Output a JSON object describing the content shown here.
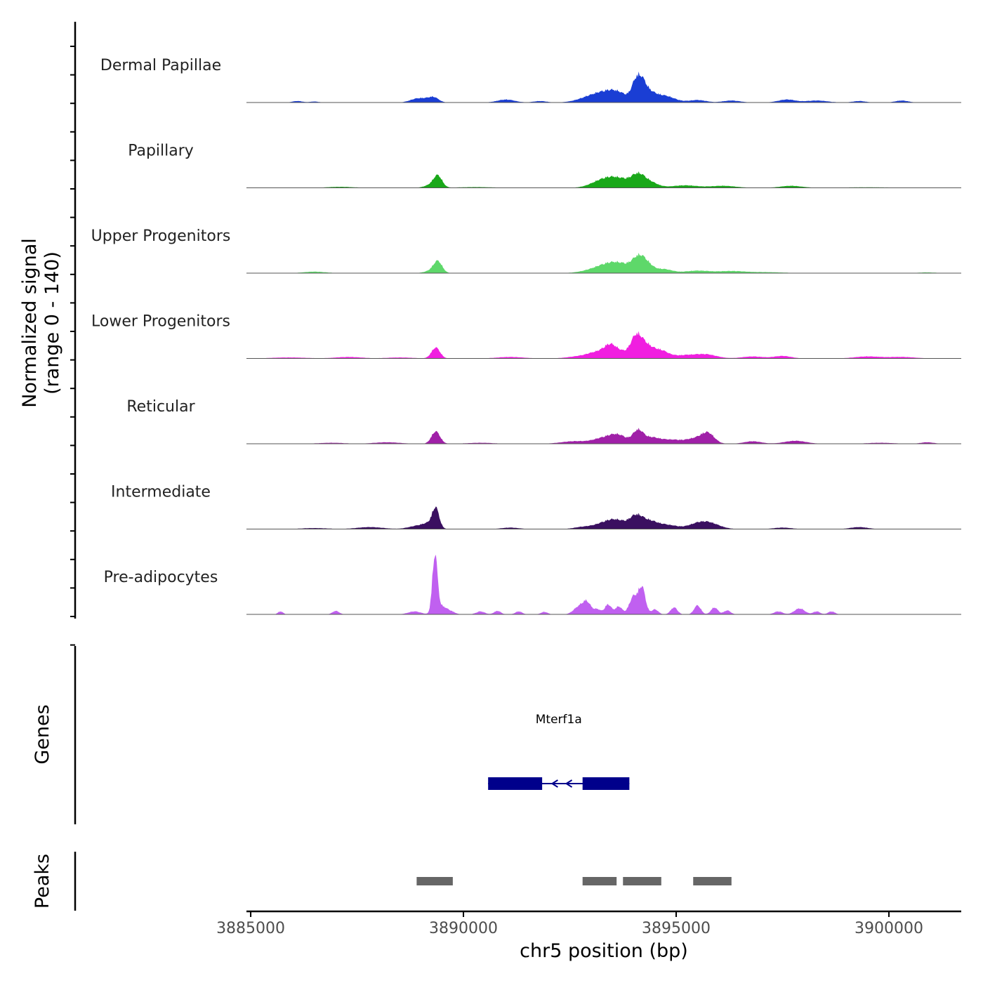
{
  "chart_data": {
    "type": "area",
    "region": {
      "chrom": "chr5",
      "start": 3884900,
      "end": 3901700
    },
    "coverage": {
      "ylabel_line1": "Normalized signal",
      "ylabel_line2": "(range 0 - 140)",
      "ylim": [
        0,
        140
      ],
      "tracks": [
        {
          "name": "Dermal Papillae",
          "color": "#1a3ed4",
          "peaks": [
            [
              3886100,
              3,
              120
            ],
            [
              3886500,
              2,
              100
            ],
            [
              3888850,
              5,
              150
            ],
            [
              3889050,
              6,
              150
            ],
            [
              3889300,
              10,
              120
            ],
            [
              3891000,
              6,
              200
            ],
            [
              3891800,
              3,
              150
            ],
            [
              3893000,
              10,
              300
            ],
            [
              3893400,
              14,
              300
            ],
            [
              3893650,
              12,
              250
            ],
            [
              3894050,
              35,
              100
            ],
            [
              3894200,
              28,
              100
            ],
            [
              3894350,
              16,
              150
            ],
            [
              3894700,
              14,
              250
            ],
            [
              3895500,
              5,
              200
            ],
            [
              3896300,
              4,
              200
            ],
            [
              3897600,
              6,
              200
            ],
            [
              3898300,
              4,
              250
            ],
            [
              3899300,
              3,
              150
            ],
            [
              3900300,
              4,
              150
            ]
          ]
        },
        {
          "name": "Papillary",
          "color": "#1aa81a",
          "peaks": [
            [
              3887100,
              2,
              300
            ],
            [
              3889400,
              22,
              100
            ],
            [
              3889250,
              6,
              150
            ],
            [
              3893200,
              10,
              250
            ],
            [
              3893500,
              13,
              250
            ],
            [
              3893800,
              10,
              250
            ],
            [
              3894100,
              19,
              150
            ],
            [
              3894350,
              12,
              200
            ],
            [
              3895200,
              5,
              300
            ],
            [
              3896100,
              4,
              300
            ],
            [
              3897700,
              4,
              250
            ],
            [
              3890300,
              1.5,
              400
            ],
            [
              3899500,
              1,
              600
            ]
          ]
        },
        {
          "name": "Upper Progenitors",
          "color": "#5ed86a",
          "peaks": [
            [
              3886500,
              3,
              250
            ],
            [
              3889400,
              22,
              100
            ],
            [
              3889250,
              5,
              150
            ],
            [
              3893100,
              7,
              300
            ],
            [
              3893450,
              15,
              250
            ],
            [
              3893750,
              11,
              200
            ],
            [
              3894100,
              27,
              150
            ],
            [
              3894300,
              16,
              150
            ],
            [
              3894700,
              8,
              200
            ],
            [
              3895500,
              5,
              300
            ],
            [
              3896300,
              4,
              300
            ],
            [
              3897100,
              2,
              400
            ],
            [
              3900900,
              1.5,
              200
            ]
          ]
        },
        {
          "name": "Lower Progenitors",
          "color": "#f01fe0",
          "peaks": [
            [
              3885900,
              2,
              400
            ],
            [
              3887300,
              3,
              300
            ],
            [
              3888500,
              2,
              300
            ],
            [
              3889350,
              22,
              100
            ],
            [
              3891100,
              3,
              300
            ],
            [
              3892800,
              5,
              300
            ],
            [
              3893150,
              10,
              200
            ],
            [
              3893450,
              22,
              150
            ],
            [
              3893750,
              12,
              200
            ],
            [
              3894050,
              35,
              120
            ],
            [
              3894250,
              25,
              150
            ],
            [
              3894600,
              17,
              200
            ],
            [
              3895200,
              6,
              250
            ],
            [
              3895700,
              8,
              250
            ],
            [
              3896800,
              4,
              250
            ],
            [
              3897500,
              5,
              200
            ],
            [
              3899500,
              4,
              300
            ],
            [
              3900300,
              3,
              300
            ]
          ]
        },
        {
          "name": "Reticular",
          "color": "#a020a8",
          "peaks": [
            [
              3886900,
              2,
              300
            ],
            [
              3888200,
              3,
              300
            ],
            [
              3889350,
              25,
              100
            ],
            [
              3890400,
              2,
              300
            ],
            [
              3892600,
              5,
              300
            ],
            [
              3893300,
              11,
              250
            ],
            [
              3893650,
              15,
              200
            ],
            [
              3894100,
              24,
              120
            ],
            [
              3894400,
              12,
              200
            ],
            [
              3894900,
              8,
              250
            ],
            [
              3895750,
              20,
              150
            ],
            [
              3895450,
              10,
              200
            ],
            [
              3896800,
              5,
              200
            ],
            [
              3897800,
              6,
              250
            ],
            [
              3899800,
              2,
              300
            ],
            [
              3900900,
              3,
              150
            ]
          ]
        },
        {
          "name": "Intermediate",
          "color": "#3a1060",
          "peaks": [
            [
              3886500,
              2,
              300
            ],
            [
              3887800,
              4,
              300
            ],
            [
              3888900,
              6,
              200
            ],
            [
              3889350,
              38,
              80
            ],
            [
              3889200,
              10,
              150
            ],
            [
              3891100,
              3,
              200
            ],
            [
              3892800,
              4,
              200
            ],
            [
              3893350,
              13,
              250
            ],
            [
              3893650,
              12,
              200
            ],
            [
              3894050,
              23,
              150
            ],
            [
              3894350,
              15,
              200
            ],
            [
              3894800,
              8,
              250
            ],
            [
              3895750,
              13,
              250
            ],
            [
              3895450,
              6,
              200
            ],
            [
              3897500,
              3,
              200
            ],
            [
              3899300,
              4,
              200
            ]
          ]
        },
        {
          "name": "Pre-adipocytes",
          "color": "#c060f0",
          "peaks": [
            [
              3885700,
              6,
              60
            ],
            [
              3887000,
              7,
              80
            ],
            [
              3888850,
              6,
              150
            ],
            [
              3889330,
              120,
              60
            ],
            [
              3889500,
              15,
              100
            ],
            [
              3889700,
              6,
              100
            ],
            [
              3890400,
              6,
              100
            ],
            [
              3890800,
              7,
              80
            ],
            [
              3891300,
              6,
              80
            ],
            [
              3891900,
              5,
              80
            ],
            [
              3892700,
              14,
              120
            ],
            [
              3892900,
              24,
              100
            ],
            [
              3893150,
              10,
              80
            ],
            [
              3893400,
              20,
              80
            ],
            [
              3893650,
              16,
              80
            ],
            [
              3894000,
              36,
              100
            ],
            [
              3894200,
              52,
              80
            ],
            [
              3894500,
              10,
              80
            ],
            [
              3894950,
              14,
              80
            ],
            [
              3895500,
              18,
              80
            ],
            [
              3895900,
              14,
              80
            ],
            [
              3896200,
              8,
              80
            ],
            [
              3897400,
              6,
              100
            ],
            [
              3897900,
              12,
              120
            ],
            [
              3898300,
              6,
              80
            ],
            [
              3898650,
              6,
              80
            ]
          ]
        }
      ]
    },
    "genes": {
      "label": "Genes",
      "items": [
        {
          "name": "Mterf1a",
          "start": 3890580,
          "end": 3893900,
          "strand": "-",
          "color": "#00008b",
          "exons": [
            [
              3890580,
              3891850
            ],
            [
              3892800,
              3893900
            ]
          ]
        }
      ]
    },
    "peaks": {
      "label": "Peaks",
      "color": "#666666",
      "regions": [
        [
          3888900,
          3889750
        ],
        [
          3892800,
          3893600
        ],
        [
          3893750,
          3894650
        ],
        [
          3895400,
          3896300
        ]
      ]
    },
    "xaxis": {
      "label": "chr5 position (bp)",
      "ticks": [
        3885000,
        3890000,
        3895000,
        3900000
      ],
      "tick_labels": [
        "3885000",
        "3890000",
        "3895000",
        "3900000"
      ]
    }
  }
}
